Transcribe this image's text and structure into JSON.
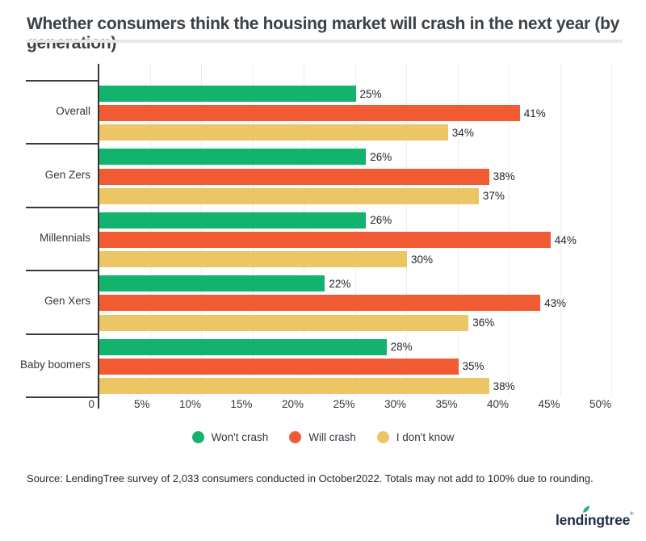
{
  "title": "Whether consumers think the housing market will crash in the next year (by generation)",
  "chart_data": {
    "type": "bar",
    "orientation": "horizontal",
    "title": "Whether consumers think the housing market will crash in the next year (by generation)",
    "categories": [
      "Overall",
      "Gen Zers",
      "Millennials",
      "Gen Xers",
      "Baby boomers"
    ],
    "series": [
      {
        "name": "Won't crash",
        "color": "#11b36d",
        "values": [
          25,
          26,
          26,
          22,
          28
        ]
      },
      {
        "name": "Will crash",
        "color": "#f15b33",
        "values": [
          41,
          38,
          44,
          43,
          35
        ]
      },
      {
        "name": "I don't know",
        "color": "#ecc565",
        "values": [
          34,
          37,
          30,
          36,
          38
        ]
      }
    ],
    "value_label_suffix": "%",
    "x_ticks": [
      "0",
      "5%",
      "10%",
      "15%",
      "20%",
      "25%",
      "30%",
      "35%",
      "40%",
      "45%",
      "50%"
    ],
    "xlim": [
      0,
      50
    ],
    "grid": true,
    "legend_position": "bottom"
  },
  "source": "Source: LendingTree survey of 2,033 consumers conducted in October2022. Totals may not add to 100% due to rounding.",
  "logo": {
    "part1": "lend",
    "dotted_letter": "i",
    "part2": "ngtree",
    "mark": "®",
    "text_color": "#1b2b45",
    "leaf_color": "#2bb273"
  }
}
